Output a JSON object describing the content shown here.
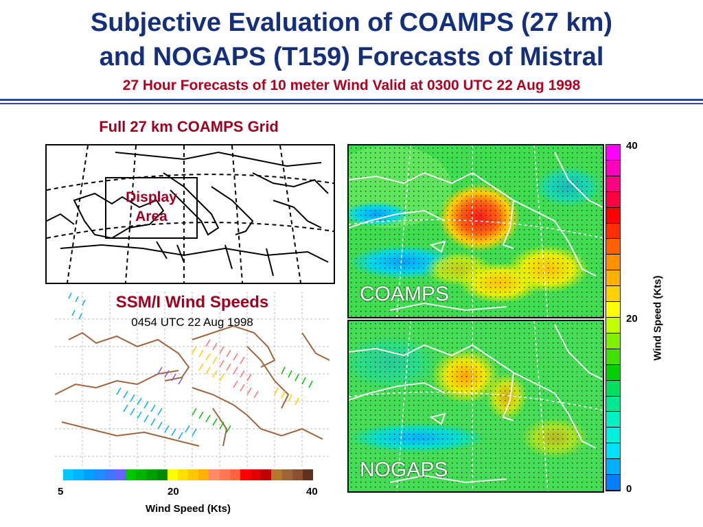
{
  "title": {
    "line1": "Subjective Evaluation of COAMPS (27 km)",
    "line2": "and NOGAPS (T159) Forecasts of Mistral",
    "subtitle": "27 Hour Forecasts of 10 meter Wind Valid at 0300 UTC 22 Aug 1998"
  },
  "grid_panel": {
    "title": "Full 27 km COAMPS Grid",
    "display_area_line1": "Display",
    "display_area_line2": "Area"
  },
  "ssmi_panel": {
    "title": "SSM/I Wind Speeds",
    "time": "0454 UTC 22 Aug 1998",
    "colorbar": {
      "tick_min": "5",
      "tick_mid": "20",
      "tick_max": "40",
      "label": "Wind Speed (Kts)",
      "colors": [
        "#00c8ff",
        "#00b4ff",
        "#00a0ff",
        "#1e8cff",
        "#3c78ff",
        "#6464ff",
        "#00c800",
        "#00b400",
        "#00a000",
        "#008c00",
        "#ffff00",
        "#ffe000",
        "#ffc800",
        "#ffb000",
        "#ff8c64",
        "#ff7850",
        "#ff6440",
        "#ff0000",
        "#e00000",
        "#c00000",
        "#b4782c",
        "#a0643c",
        "#8c5030",
        "#603020"
      ]
    }
  },
  "coamps_panel": {
    "label": "COAMPS"
  },
  "nogaps_panel": {
    "label": "NOGAPS"
  },
  "right_colorbar": {
    "tick_top": "40",
    "tick_mid": "20",
    "tick_bottom": "0",
    "label": "Wind Speed (Kts)",
    "colors": [
      "#ff00ff",
      "#ff00c0",
      "#ff0080",
      "#ff0040",
      "#ff0000",
      "#ff3000",
      "#ff6000",
      "#ff9000",
      "#ffb000",
      "#ffd000",
      "#ffff00",
      "#c0ff00",
      "#80f000",
      "#40e000",
      "#00d000",
      "#00e060",
      "#00e890",
      "#00f0c0",
      "#00f0e0",
      "#00e0ff",
      "#00b0ff",
      "#0080ff"
    ]
  }
}
